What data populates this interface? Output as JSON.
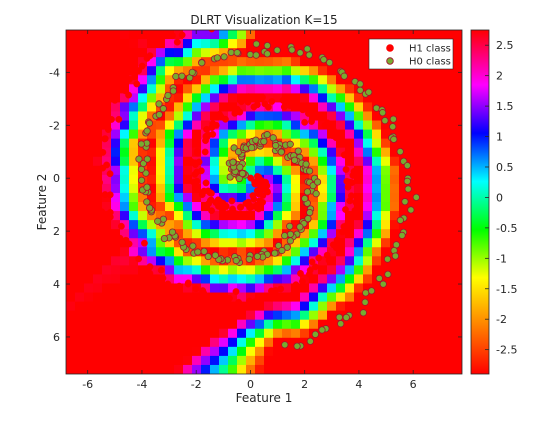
{
  "chart_data": {
    "type": "scatter",
    "title": "DLRT Visualization K=15",
    "xlabel": "Feature 1",
    "ylabel": "Feature 2",
    "xlim": [
      -6.8,
      7.8
    ],
    "ylim": [
      -5.6,
      7.4
    ],
    "y_axis_reversed": true,
    "x_ticks": [
      "-6",
      "-4",
      "-2",
      "0",
      "2",
      "4",
      "6"
    ],
    "x_tick_values": [
      -6,
      -4,
      -2,
      0,
      2,
      4,
      6
    ],
    "y_ticks": [
      "-4",
      "-2",
      "0",
      "2",
      "4",
      "6"
    ],
    "y_tick_values": [
      -4,
      -2,
      0,
      2,
      4,
      6
    ],
    "grid": false,
    "legend_position": "top-right",
    "series": [
      {
        "name": "H1 class",
        "marker": "filled-circle",
        "color": "#ff0000",
        "edge_color": "#ff0000",
        "spiral": {
          "radius_start": 0.2,
          "radius_end": 6.2,
          "angle_start": 0,
          "angle_end": 10.8,
          "phase": 0,
          "count": 240,
          "noise": 0.15
        }
      },
      {
        "name": "H0 class",
        "marker": "filled-circle",
        "color": "#77ac30",
        "edge_color": "#a2142f",
        "spiral": {
          "radius_start": 0.3,
          "radius_end": 6.6,
          "angle_start": 0,
          "angle_end": 10.8,
          "phase": 3.14159,
          "count": 240,
          "noise": 0.12
        }
      }
    ],
    "background": {
      "type": "heatmap",
      "description_value_range": [
        -2.9,
        2.75
      ],
      "colormap": "hsv-jet"
    },
    "colorbar": {
      "ticks": [
        "2.5",
        "2",
        "1.5",
        "1",
        "0.5",
        "0",
        "-0.5",
        "-1",
        "-1.5",
        "-2",
        "-2.5"
      ],
      "tick_values": [
        2.5,
        2,
        1.5,
        1,
        0.5,
        0,
        -0.5,
        -1,
        -1.5,
        -2,
        -2.5
      ],
      "range": [
        -2.9,
        2.75
      ]
    }
  }
}
